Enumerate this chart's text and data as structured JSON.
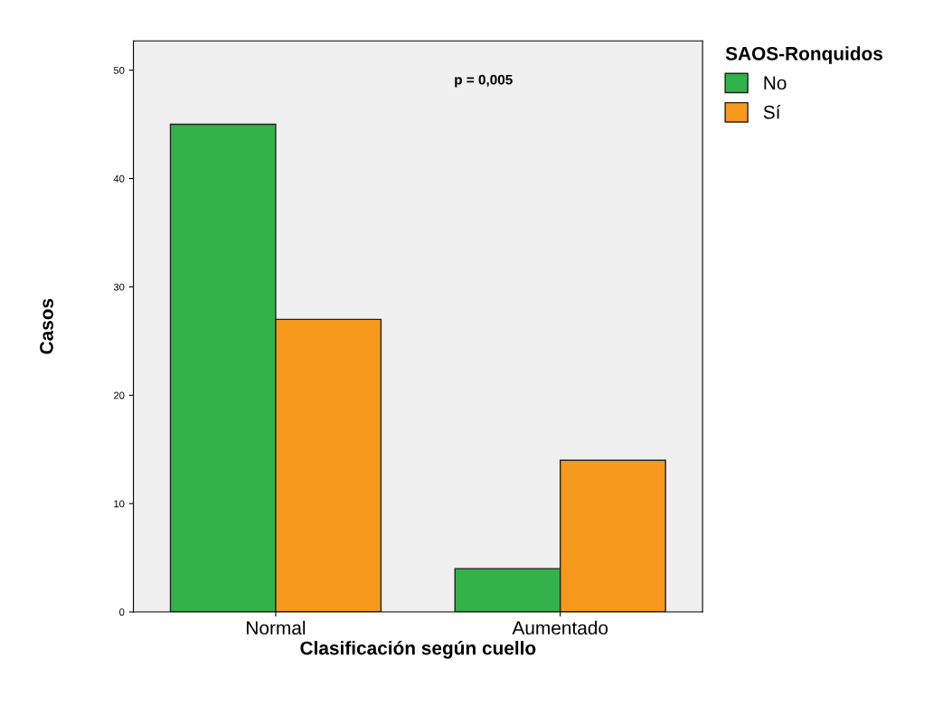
{
  "chart_data": {
    "type": "bar",
    "xlabel": "Clasificación según cuello",
    "ylabel": "Casos",
    "legend_title": "SAOS-Ronquidos",
    "categories": [
      "Normal",
      "Aumentado"
    ],
    "series": [
      {
        "name": "No",
        "color": "#33b24a",
        "values": [
          45,
          4
        ]
      },
      {
        "name": "Sí",
        "color": "#f7991d",
        "values": [
          27,
          14
        ]
      }
    ],
    "ylim": [
      0,
      52.7
    ],
    "yticks": [
      0,
      10,
      20,
      30,
      40,
      50
    ],
    "grid": false,
    "legend": "top right",
    "annotations": [
      "p = 0,005"
    ]
  }
}
